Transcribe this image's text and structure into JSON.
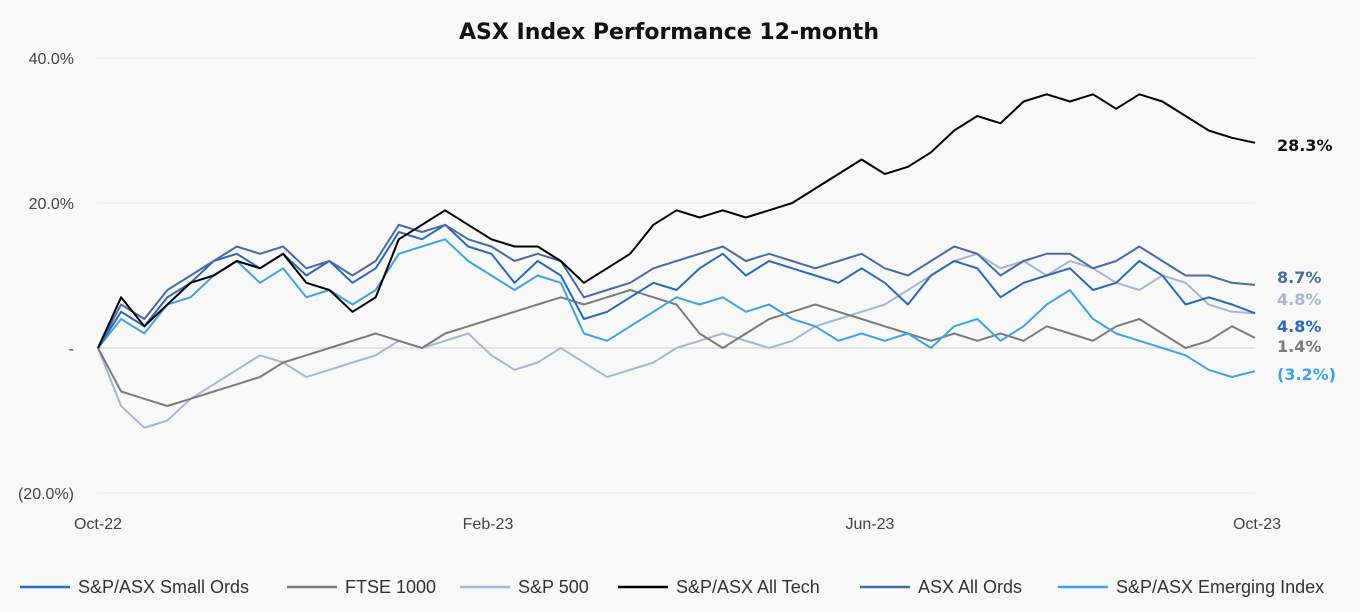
{
  "chart_data": {
    "type": "line",
    "title": "ASX Index Performance 12-month",
    "xlabel": "",
    "ylabel": "",
    "x_ticks": [
      "Oct-22",
      "Feb-23",
      "Jun-23",
      "Oct-23"
    ],
    "y_ticks": [
      "40.0%",
      "20.0%",
      "-",
      "(20.0%)"
    ],
    "ylim": [
      -20,
      40
    ],
    "grid": true,
    "legend_position": "bottom",
    "series": [
      {
        "name": "S&P/ASX Small Ords",
        "color": "#2a6ab5",
        "end_label": "4.8%",
        "values": [
          0,
          5,
          3,
          7,
          9,
          12,
          13,
          11,
          13,
          10,
          12,
          9,
          11,
          16,
          15,
          17,
          14,
          13,
          9,
          12,
          10,
          4,
          5,
          7,
          9,
          8,
          11,
          13,
          10,
          12,
          11,
          10,
          9,
          11,
          9,
          6,
          10,
          12,
          11,
          7,
          9,
          10,
          11,
          8,
          9,
          12,
          10,
          6,
          7,
          6,
          4.8
        ]
      },
      {
        "name": "FTSE 1000",
        "color": "#7b7b7b",
        "end_label": "1.4%",
        "values": [
          0,
          -6,
          -7,
          -8,
          -7,
          -6,
          -5,
          -4,
          -2,
          -1,
          0,
          1,
          2,
          1,
          0,
          2,
          3,
          4,
          5,
          6,
          7,
          6,
          7,
          8,
          7,
          6,
          2,
          0,
          2,
          4,
          5,
          6,
          5,
          4,
          3,
          2,
          1,
          2,
          1,
          2,
          1,
          3,
          2,
          1,
          3,
          4,
          2,
          0,
          1,
          3,
          1.4
        ]
      },
      {
        "name": "S&P 500",
        "color": "#a7b6d3",
        "end_label": "4.8%",
        "values": [
          0,
          -8,
          -11,
          -10,
          -7,
          -5,
          -3,
          -1,
          -2,
          -4,
          -3,
          -2,
          -1,
          1,
          0,
          1,
          2,
          -1,
          -3,
          -2,
          0,
          -2,
          -4,
          -3,
          -2,
          0,
          1,
          2,
          1,
          0,
          1,
          3,
          4,
          5,
          6,
          8,
          10,
          12,
          13,
          11,
          12,
          10,
          12,
          11,
          9,
          8,
          10,
          9,
          6,
          5,
          4.8
        ]
      },
      {
        "name": "S&P/ASX All Tech",
        "color": "#000000",
        "end_label": "28.3%",
        "values": [
          0,
          7,
          3,
          6,
          9,
          10,
          12,
          11,
          13,
          9,
          8,
          5,
          7,
          15,
          17,
          19,
          17,
          15,
          14,
          14,
          12,
          9,
          11,
          13,
          17,
          19,
          18,
          19,
          18,
          19,
          20,
          22,
          24,
          26,
          24,
          25,
          27,
          30,
          32,
          31,
          34,
          35,
          34,
          35,
          33,
          35,
          34,
          32,
          30,
          29,
          28.3
        ]
      },
      {
        "name": "ASX All Ords",
        "color": "#4a6aa6",
        "end_label": "8.7%",
        "values": [
          0,
          6,
          4,
          8,
          10,
          12,
          14,
          13,
          14,
          11,
          12,
          10,
          12,
          17,
          16,
          17,
          15,
          14,
          12,
          13,
          12,
          7,
          8,
          9,
          11,
          12,
          13,
          14,
          12,
          13,
          12,
          11,
          12,
          13,
          11,
          10,
          12,
          14,
          13,
          10,
          12,
          13,
          13,
          11,
          12,
          14,
          12,
          10,
          10,
          9,
          8.7
        ]
      },
      {
        "name": "S&P/ASX Emerging Index",
        "color": "#3fa2e3",
        "end_label": "(3.2%)",
        "values": [
          0,
          4,
          2,
          6,
          7,
          10,
          12,
          9,
          11,
          7,
          8,
          6,
          8,
          13,
          14,
          15,
          12,
          10,
          8,
          10,
          9,
          2,
          1,
          3,
          5,
          7,
          6,
          7,
          5,
          6,
          4,
          3,
          1,
          2,
          1,
          2,
          0,
          3,
          4,
          1,
          3,
          6,
          8,
          4,
          2,
          1,
          0,
          -1,
          -3,
          -4,
          -3.2
        ]
      }
    ]
  }
}
